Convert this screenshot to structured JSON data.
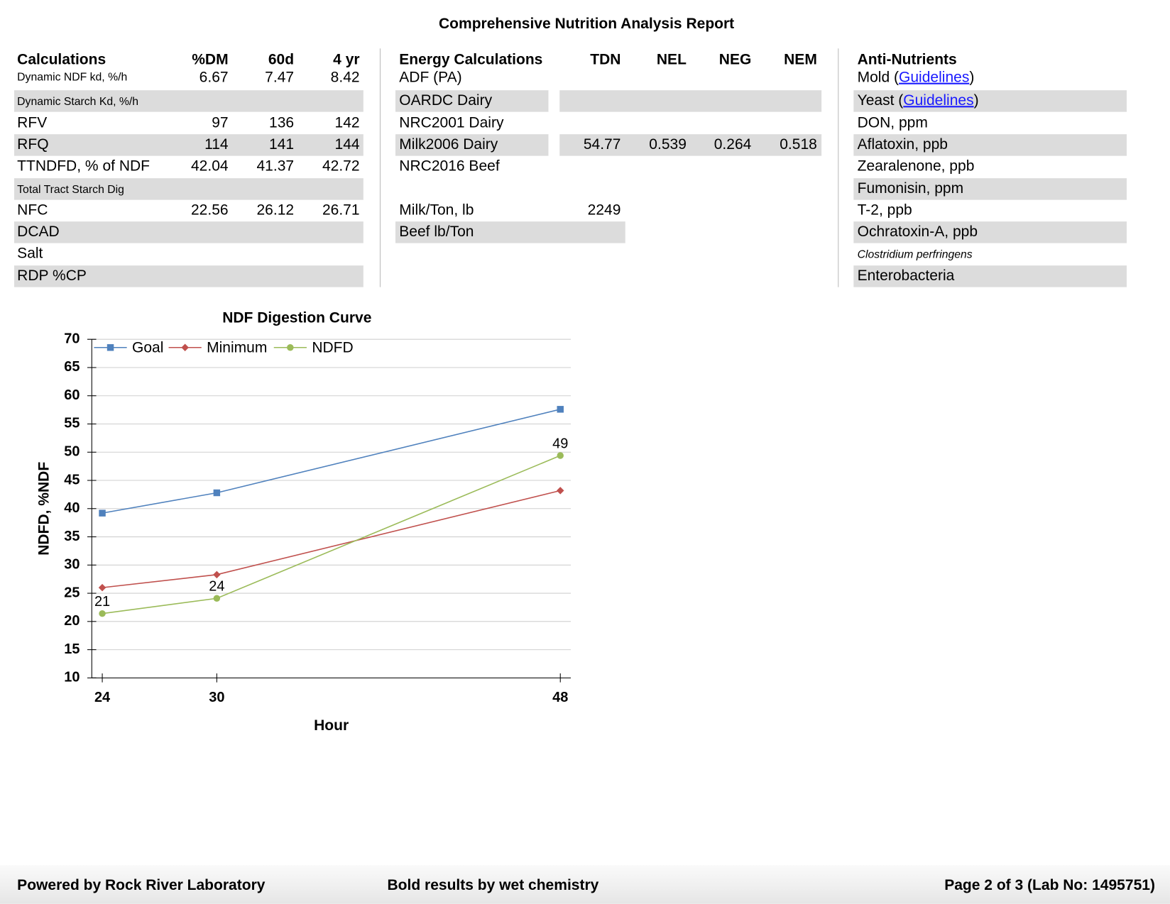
{
  "header": {
    "title": "Comprehensive Nutrition Analysis Report"
  },
  "calculations": {
    "columns": [
      "Calculations",
      "%DM",
      "60d",
      "4 yr"
    ],
    "rows": [
      {
        "label": "Dynamic NDF kd, %/h",
        "values": [
          6.67,
          7.47,
          8.42
        ]
      },
      {
        "label": "Dynamic Starch Kd, %/h",
        "values": []
      },
      {
        "label": "RFV",
        "values": [
          97,
          136,
          142
        ]
      },
      {
        "label": "RFQ",
        "values": [
          114,
          141,
          144
        ]
      },
      {
        "label": "TTNDFD, % of NDF",
        "values": [
          42.04,
          41.37,
          42.72
        ]
      },
      {
        "label": "Total Tract Starch Dig",
        "values": []
      },
      {
        "label": "NFC",
        "values": [
          22.56,
          26.12,
          26.71
        ]
      },
      {
        "label": "DCAD",
        "values": []
      },
      {
        "label": "Salt",
        "values": []
      },
      {
        "label": "RDP %CP",
        "values": []
      }
    ]
  },
  "energy": {
    "columns": [
      "Energy Calculations",
      "TDN",
      "NEL",
      "NEG",
      "NEM"
    ],
    "rows": [
      {
        "label": "ADF (PA)",
        "values": []
      },
      {
        "label": "OARDC Dairy",
        "values": []
      },
      {
        "label": "NRC2001 Dairy",
        "values": []
      },
      {
        "label": "Milk2006 Dairy",
        "values": [
          54.77,
          0.539,
          0.264,
          0.518
        ]
      },
      {
        "label": "NRC2016 Beef",
        "values": []
      }
    ],
    "yield_rows": [
      {
        "label": "Milk/Ton, lb",
        "values": [
          2249
        ]
      },
      {
        "label": "Beef lb/Ton",
        "values": []
      }
    ]
  },
  "anti_nutrients": {
    "title": "Anti-Nutrients",
    "rows": [
      {
        "text": "Mold (",
        "link": "Guidelines",
        "after": ")"
      },
      {
        "text": "Yeast (",
        "link": "Guidelines",
        "after": ")"
      },
      {
        "text": "DON, ppm"
      },
      {
        "text": "Aflatoxin, ppb"
      },
      {
        "text": "Zearalenone, ppb"
      },
      {
        "text": "Fumonisin, ppm"
      },
      {
        "text": "T-2, ppb"
      },
      {
        "text": "Ochratoxin-A, ppb"
      },
      {
        "text": "Clostridium perfringens",
        "italic": true
      },
      {
        "text": "Enterobacteria"
      }
    ]
  },
  "chart_data": {
    "type": "line",
    "title": "NDF Digestion Curve",
    "x_label": "Hour",
    "y_label": "NDFD, %NDF",
    "x": [
      24,
      30,
      48
    ],
    "xlim": [
      23.45,
      48.55
    ],
    "xticks": [
      24,
      30,
      48
    ],
    "ylim": [
      10,
      70
    ],
    "yticks": [
      10,
      15,
      20,
      25,
      30,
      35,
      40,
      45,
      50,
      55,
      60,
      65,
      70
    ],
    "grid": true,
    "legend": "top-left",
    "series": [
      {
        "name": "Goal",
        "color": "#4f81bd",
        "marker": "square",
        "values": [
          39.2,
          42.8,
          57.6
        ]
      },
      {
        "name": "Minimum",
        "color": "#c0504d",
        "marker": "diamond",
        "values": [
          26,
          28.3,
          43.2
        ]
      },
      {
        "name": "NDFD",
        "color": "#9bbb59",
        "marker": "circle",
        "values": [
          21.4,
          24.1,
          49.4
        ],
        "value_labels": [
          "21",
          "24",
          "49"
        ]
      }
    ]
  },
  "footer": {
    "left": "Powered by Rock River Laboratory",
    "center": "Bold results by wet chemistry",
    "right": "Page 2 of 3 (Lab No: 1495751)"
  }
}
